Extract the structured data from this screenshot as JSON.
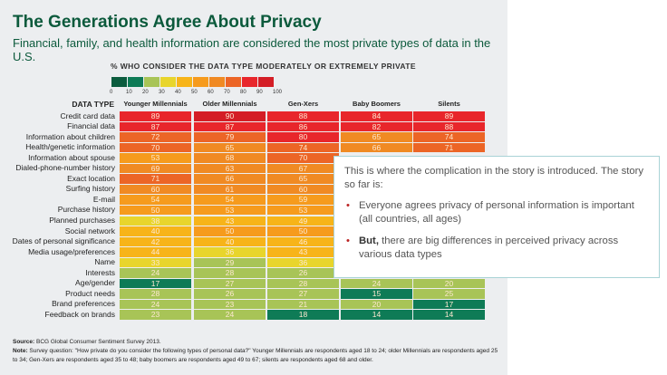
{
  "chart_data": {
    "type": "heatmap",
    "title": "The Generations Agree About Privacy",
    "subtitle": "Financial, family, and health information are considered the most private types of data in the U.S.",
    "scale_title": "% WHO CONSIDER THE DATA TYPE MODERATELY OR EXTREMELY PRIVATE",
    "scale_ticks": [
      "0",
      "10",
      "20",
      "30",
      "40",
      "50",
      "60",
      "70",
      "80",
      "90",
      "100"
    ],
    "scale_colors": [
      "#0b5c3e",
      "#0e7b56",
      "#a8c457",
      "#e8d52c",
      "#f7b419",
      "#f69b1d",
      "#f08a23",
      "#ec6526",
      "#e8262b",
      "#d41e26"
    ],
    "row_header": "DATA TYPE",
    "columns": [
      "Younger Millennials",
      "Older Millennials",
      "Gen-Xers",
      "Baby Boomers",
      "Silents"
    ],
    "rows": [
      {
        "label": "Credit card data",
        "values": [
          89,
          90,
          88,
          84,
          89
        ]
      },
      {
        "label": "Financial data",
        "values": [
          87,
          87,
          86,
          82,
          88
        ]
      },
      {
        "label": "Information about children",
        "values": [
          72,
          79,
          80,
          65,
          74
        ]
      },
      {
        "label": "Health/genetic information",
        "values": [
          70,
          65,
          74,
          66,
          71
        ]
      },
      {
        "label": "Information about spouse",
        "values": [
          53,
          68,
          70,
          null,
          null
        ]
      },
      {
        "label": "Dialed-phone-number history",
        "values": [
          69,
          63,
          67,
          null,
          null
        ]
      },
      {
        "label": "Exact location",
        "values": [
          71,
          66,
          65,
          null,
          null
        ]
      },
      {
        "label": "Surfing history",
        "values": [
          60,
          61,
          60,
          null,
          null
        ]
      },
      {
        "label": "E-mail",
        "values": [
          54,
          54,
          59,
          null,
          null
        ]
      },
      {
        "label": "Purchase history",
        "values": [
          50,
          53,
          53,
          null,
          null
        ]
      },
      {
        "label": "Planned purchases",
        "values": [
          38,
          43,
          49,
          null,
          null
        ]
      },
      {
        "label": "Social network",
        "values": [
          40,
          50,
          50,
          null,
          null
        ]
      },
      {
        "label": "Dates of personal significance",
        "values": [
          42,
          40,
          46,
          null,
          null
        ]
      },
      {
        "label": "Media usage/preferences",
        "values": [
          44,
          36,
          43,
          null,
          null
        ]
      },
      {
        "label": "Name",
        "values": [
          33,
          29,
          36,
          null,
          null
        ]
      },
      {
        "label": "Interests",
        "values": [
          24,
          28,
          26,
          25,
          31
        ]
      },
      {
        "label": "Age/gender",
        "values": [
          17,
          27,
          28,
          24,
          20
        ]
      },
      {
        "label": "Product needs",
        "values": [
          28,
          26,
          27,
          15,
          25
        ]
      },
      {
        "label": "Brand preferences",
        "values": [
          24,
          23,
          21,
          20,
          17
        ]
      },
      {
        "label": "Feedback on brands",
        "values": [
          23,
          24,
          18,
          14,
          14
        ]
      }
    ],
    "source_label": "Source:",
    "source": "BCG Global Consumer Sentiment Survey 2013.",
    "note_label": "Note:",
    "note": "Survey question: \"How private do you consider the following types of personal data?\" Younger Millennials are respondents aged 18 to 24; older Millennials are respondents aged 25 to 34; Gen-Xers are respondents aged 35 to 48; baby boomers are respondents aged 49 to 67; silents are respondents aged 68 and older."
  },
  "callout": {
    "intro": "This is where the complication in the story is introduced. The story so far is:",
    "bullet1": "Everyone agrees privacy of personal information is important (all countries, all ages)",
    "bullet2_bold": "But,",
    "bullet2": " there are big differences in perceived privacy across various data types"
  }
}
